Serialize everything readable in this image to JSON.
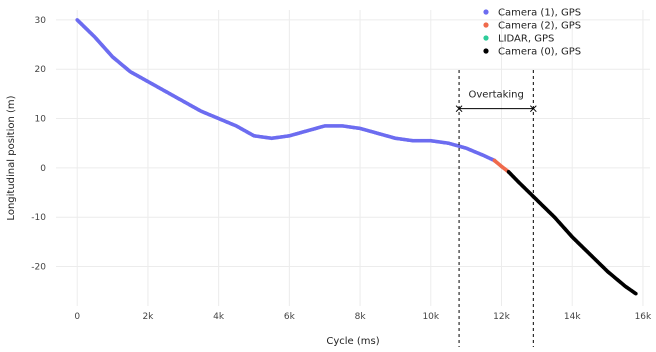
{
  "chart_data": {
    "type": "scatter",
    "xlabel": "Cycle (ms)",
    "ylabel": "Longitudinal position (m)",
    "xlim": [
      -600,
      16200
    ],
    "ylim": [
      -28,
      32
    ],
    "x_ticks": [
      0,
      2000,
      4000,
      6000,
      8000,
      10000,
      12000,
      14000,
      16000
    ],
    "x_tick_labels": [
      "0",
      "2k",
      "4k",
      "6k",
      "8k",
      "10k",
      "12k",
      "14k",
      "16k"
    ],
    "y_ticks": [
      -20,
      -10,
      0,
      10,
      20,
      30
    ],
    "y_tick_labels": [
      "-20",
      "-10",
      "0",
      "10",
      "20",
      "30"
    ],
    "grid": true,
    "legend_position": "top-right",
    "series": [
      {
        "name": "Camera (1), GPS",
        "color": "#6c6cf0",
        "x": [
          0,
          500,
          1000,
          1500,
          2000,
          2500,
          3000,
          3500,
          4000,
          4500,
          5000,
          5500,
          6000,
          6500,
          7000,
          7500,
          8000,
          8500,
          9000,
          9500,
          10000,
          10500,
          11000,
          11500,
          11800
        ],
        "y": [
          30,
          26.5,
          22.5,
          19.5,
          17.5,
          15.5,
          13.5,
          11.5,
          10,
          8.5,
          6.5,
          6,
          6.5,
          7.5,
          8.5,
          8.5,
          8,
          7,
          6,
          5.5,
          5.5,
          5,
          4,
          2.5,
          1.5
        ]
      },
      {
        "name": "Camera (2), GPS",
        "color": "#ef6a4c",
        "x": [
          11800,
          12000,
          12200
        ],
        "y": [
          1.5,
          0.3,
          -0.8
        ]
      },
      {
        "name": "LIDAR, GPS",
        "color": "#2ecc9a",
        "x": [],
        "y": []
      },
      {
        "name": "Camera (0), GPS",
        "color": "#000000",
        "x": [
          12200,
          12500,
          13000,
          13500,
          14000,
          14500,
          15000,
          15500,
          15800
        ],
        "y": [
          -0.8,
          -3,
          -6.5,
          -10,
          -14,
          -17.5,
          -21,
          -24,
          -25.5
        ]
      }
    ],
    "annotations": {
      "vlines": [
        10800,
        12900
      ],
      "span": {
        "x1": 10800,
        "x2": 12900,
        "y": 12,
        "label": "Overtaking"
      }
    }
  }
}
